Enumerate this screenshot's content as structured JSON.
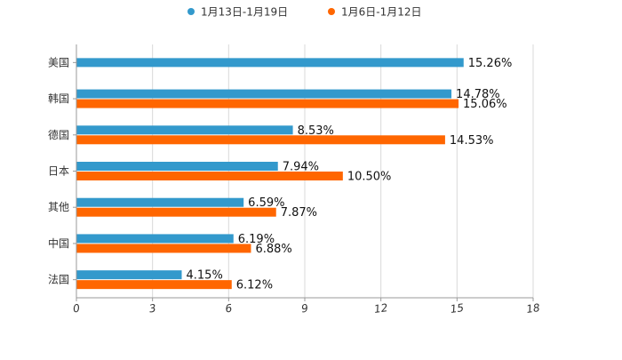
{
  "chart_data": {
    "type": "bar",
    "orientation": "horizontal",
    "title": "",
    "xlabel": "",
    "ylabel": "",
    "categories": [
      "美国",
      "韩国",
      "德国",
      "日本",
      "其他",
      "中国",
      "法国"
    ],
    "series": [
      {
        "name": "1月13日-1月19日",
        "color": "#3399cc",
        "values": [
          15.26,
          14.78,
          8.53,
          7.94,
          6.59,
          6.19,
          4.15
        ],
        "labels": [
          "15.26%",
          "14.78%",
          "8.53%",
          "7.94%",
          "6.59%",
          "6.19%",
          "4.15%"
        ]
      },
      {
        "name": "1月6日-1月12日",
        "color": "#ff6600",
        "values": [
          null,
          15.06,
          14.53,
          10.5,
          7.87,
          6.88,
          6.12
        ],
        "labels": [
          "",
          "15.06%",
          "14.53%",
          "10.50%",
          "7.87%",
          "6.88%",
          "6.12%"
        ]
      }
    ],
    "xlim": [
      0,
      18
    ],
    "xticks": [
      0,
      3,
      6,
      9,
      12,
      15,
      18
    ],
    "tick_labels": [
      "0",
      "3",
      "6",
      "9",
      "12",
      "15",
      "18"
    ],
    "grid": true,
    "legend": "top-center"
  }
}
